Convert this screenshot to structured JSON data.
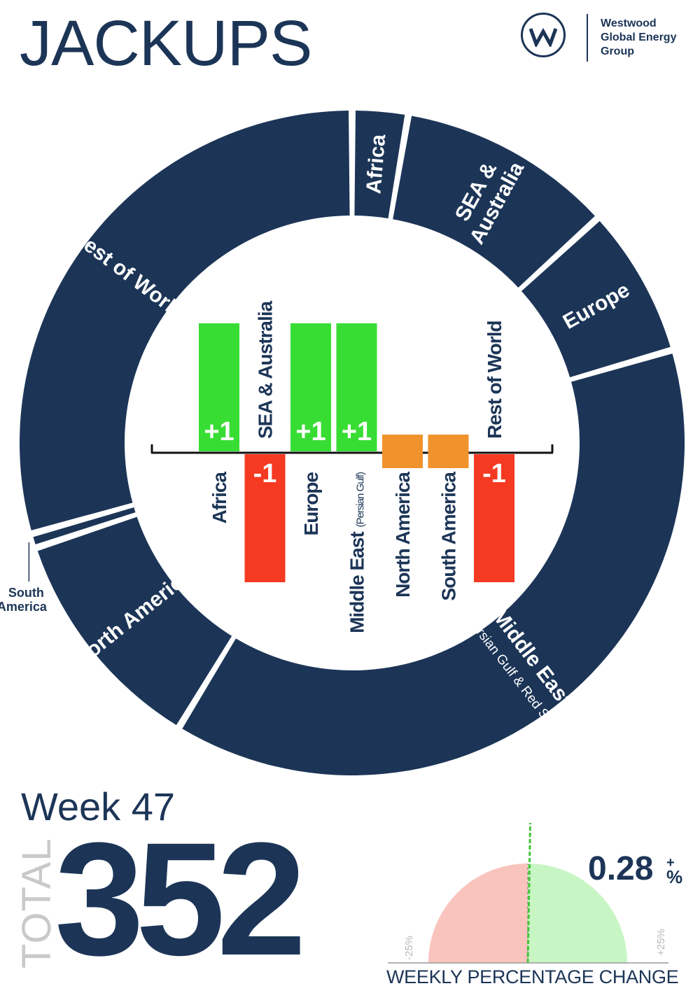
{
  "page": {
    "title": "JACKUPS",
    "brand": "Westwood\nGlobal Energy\nGroup",
    "week": "Week 47",
    "total_label": "TOTAL",
    "total_value": "352",
    "pct_value": "0.28",
    "pct_suffix": "%",
    "pct_sign": "+",
    "pct_label": "WEEKLY PERCENTAGE CHANGE",
    "gauge_min": "-25%",
    "gauge_max": "+25%"
  },
  "colors": {
    "navy": "#1c3557",
    "positive": "#38dd34",
    "negative": "#f53a22",
    "neutral": "#f0932c",
    "gauge_negative": "#f9c4bd",
    "gauge_positive": "#c8f5c4",
    "gauge_marker": "#43c437"
  },
  "chart_data": [
    {
      "type": "pie",
      "variant": "donut",
      "slices": [
        {
          "label": "Africa",
          "approx_share_pct": 2.7
        },
        {
          "label": "SEA & Australia",
          "approx_share_pct": 10.5
        },
        {
          "label": "Europe",
          "approx_share_pct": 7.3
        },
        {
          "label": "Middle East",
          "sublabel": "(Persian Gulf & Red Sea)",
          "approx_share_pct": 38.2
        },
        {
          "label": "North America",
          "approx_share_pct": 11.2
        },
        {
          "label": "South America",
          "approx_share_pct": 0.7
        },
        {
          "label": "Rest of World",
          "approx_share_pct": 29.4
        }
      ],
      "external_labels": [
        "South America"
      ]
    },
    {
      "type": "bar",
      "orientation": "vertical",
      "categories": [
        "Africa",
        "SEA & Australia",
        "Europe",
        "Middle East (Persian Gulf)",
        "North America",
        "South America",
        "Rest of World"
      ],
      "category_main": [
        "Africa",
        "SEA & Australia",
        "Europe",
        "Middle East",
        "North America",
        "South America",
        "Rest of World"
      ],
      "category_sub": [
        "",
        "",
        "",
        "(Persian Gulf)",
        "",
        "",
        ""
      ],
      "values": [
        1,
        -1,
        1,
        1,
        0,
        0,
        -1
      ],
      "value_labels": [
        "+1",
        "-1",
        "+1",
        "+1",
        "",
        "",
        "-1"
      ],
      "ylim": [
        -1,
        1
      ]
    },
    {
      "type": "gauge",
      "value": 0.28,
      "unit": "%",
      "range": [
        -25,
        25
      ],
      "label": "WEEKLY PERCENTAGE CHANGE"
    }
  ]
}
